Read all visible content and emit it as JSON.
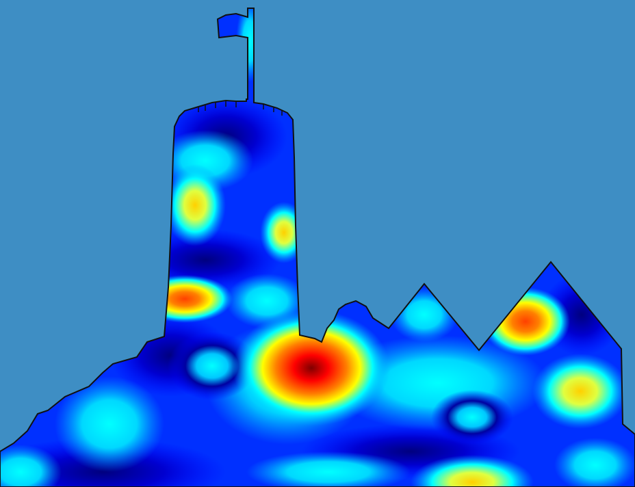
{
  "scene": {
    "description_visible_text": "",
    "background_color": "#3e8ec4",
    "outline_color": "#111111",
    "colormap": "jet",
    "colormap_stops": [
      "#00007f",
      "#0000ff",
      "#00a0ff",
      "#00ffff",
      "#7fff7f",
      "#ffff00",
      "#ff8000",
      "#ff0000",
      "#7f0000"
    ],
    "elements": [
      "flag",
      "tower-with-battlements",
      "mound",
      "twin-peaks-wall"
    ]
  }
}
